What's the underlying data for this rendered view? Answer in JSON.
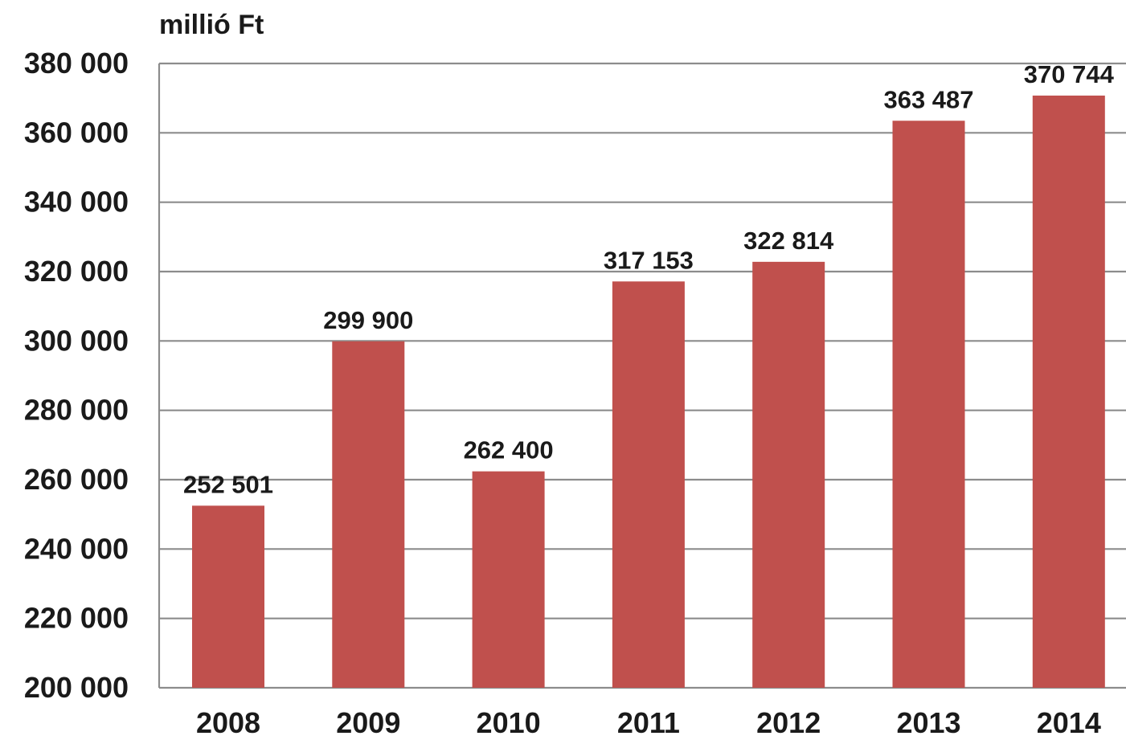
{
  "chart_data": {
    "type": "bar",
    "title": "",
    "unit_label": "millió Ft",
    "xlabel": "",
    "ylabel": "millió Ft",
    "categories": [
      "2008",
      "2009",
      "2010",
      "2011",
      "2012",
      "2013",
      "2014"
    ],
    "values": [
      252501,
      299900,
      262400,
      317153,
      322814,
      363487,
      370744
    ],
    "value_labels": [
      "252 501",
      "299 900",
      "262 400",
      "317 153",
      "322 814",
      "363 487",
      "370 744"
    ],
    "ylim": [
      200000,
      380000
    ],
    "y_ticks": [
      200000,
      220000,
      240000,
      260000,
      280000,
      300000,
      320000,
      340000,
      360000,
      380000
    ],
    "y_tick_labels": [
      "200 000",
      "220 000",
      "240 000",
      "260 000",
      "280 000",
      "300 000",
      "320 000",
      "340 000",
      "360 000",
      "380 000"
    ],
    "grid": true,
    "legend": "none",
    "colors": {
      "bar": "#c0504d",
      "grid": "#8c8c8c",
      "text": "#1a1a1a"
    }
  }
}
